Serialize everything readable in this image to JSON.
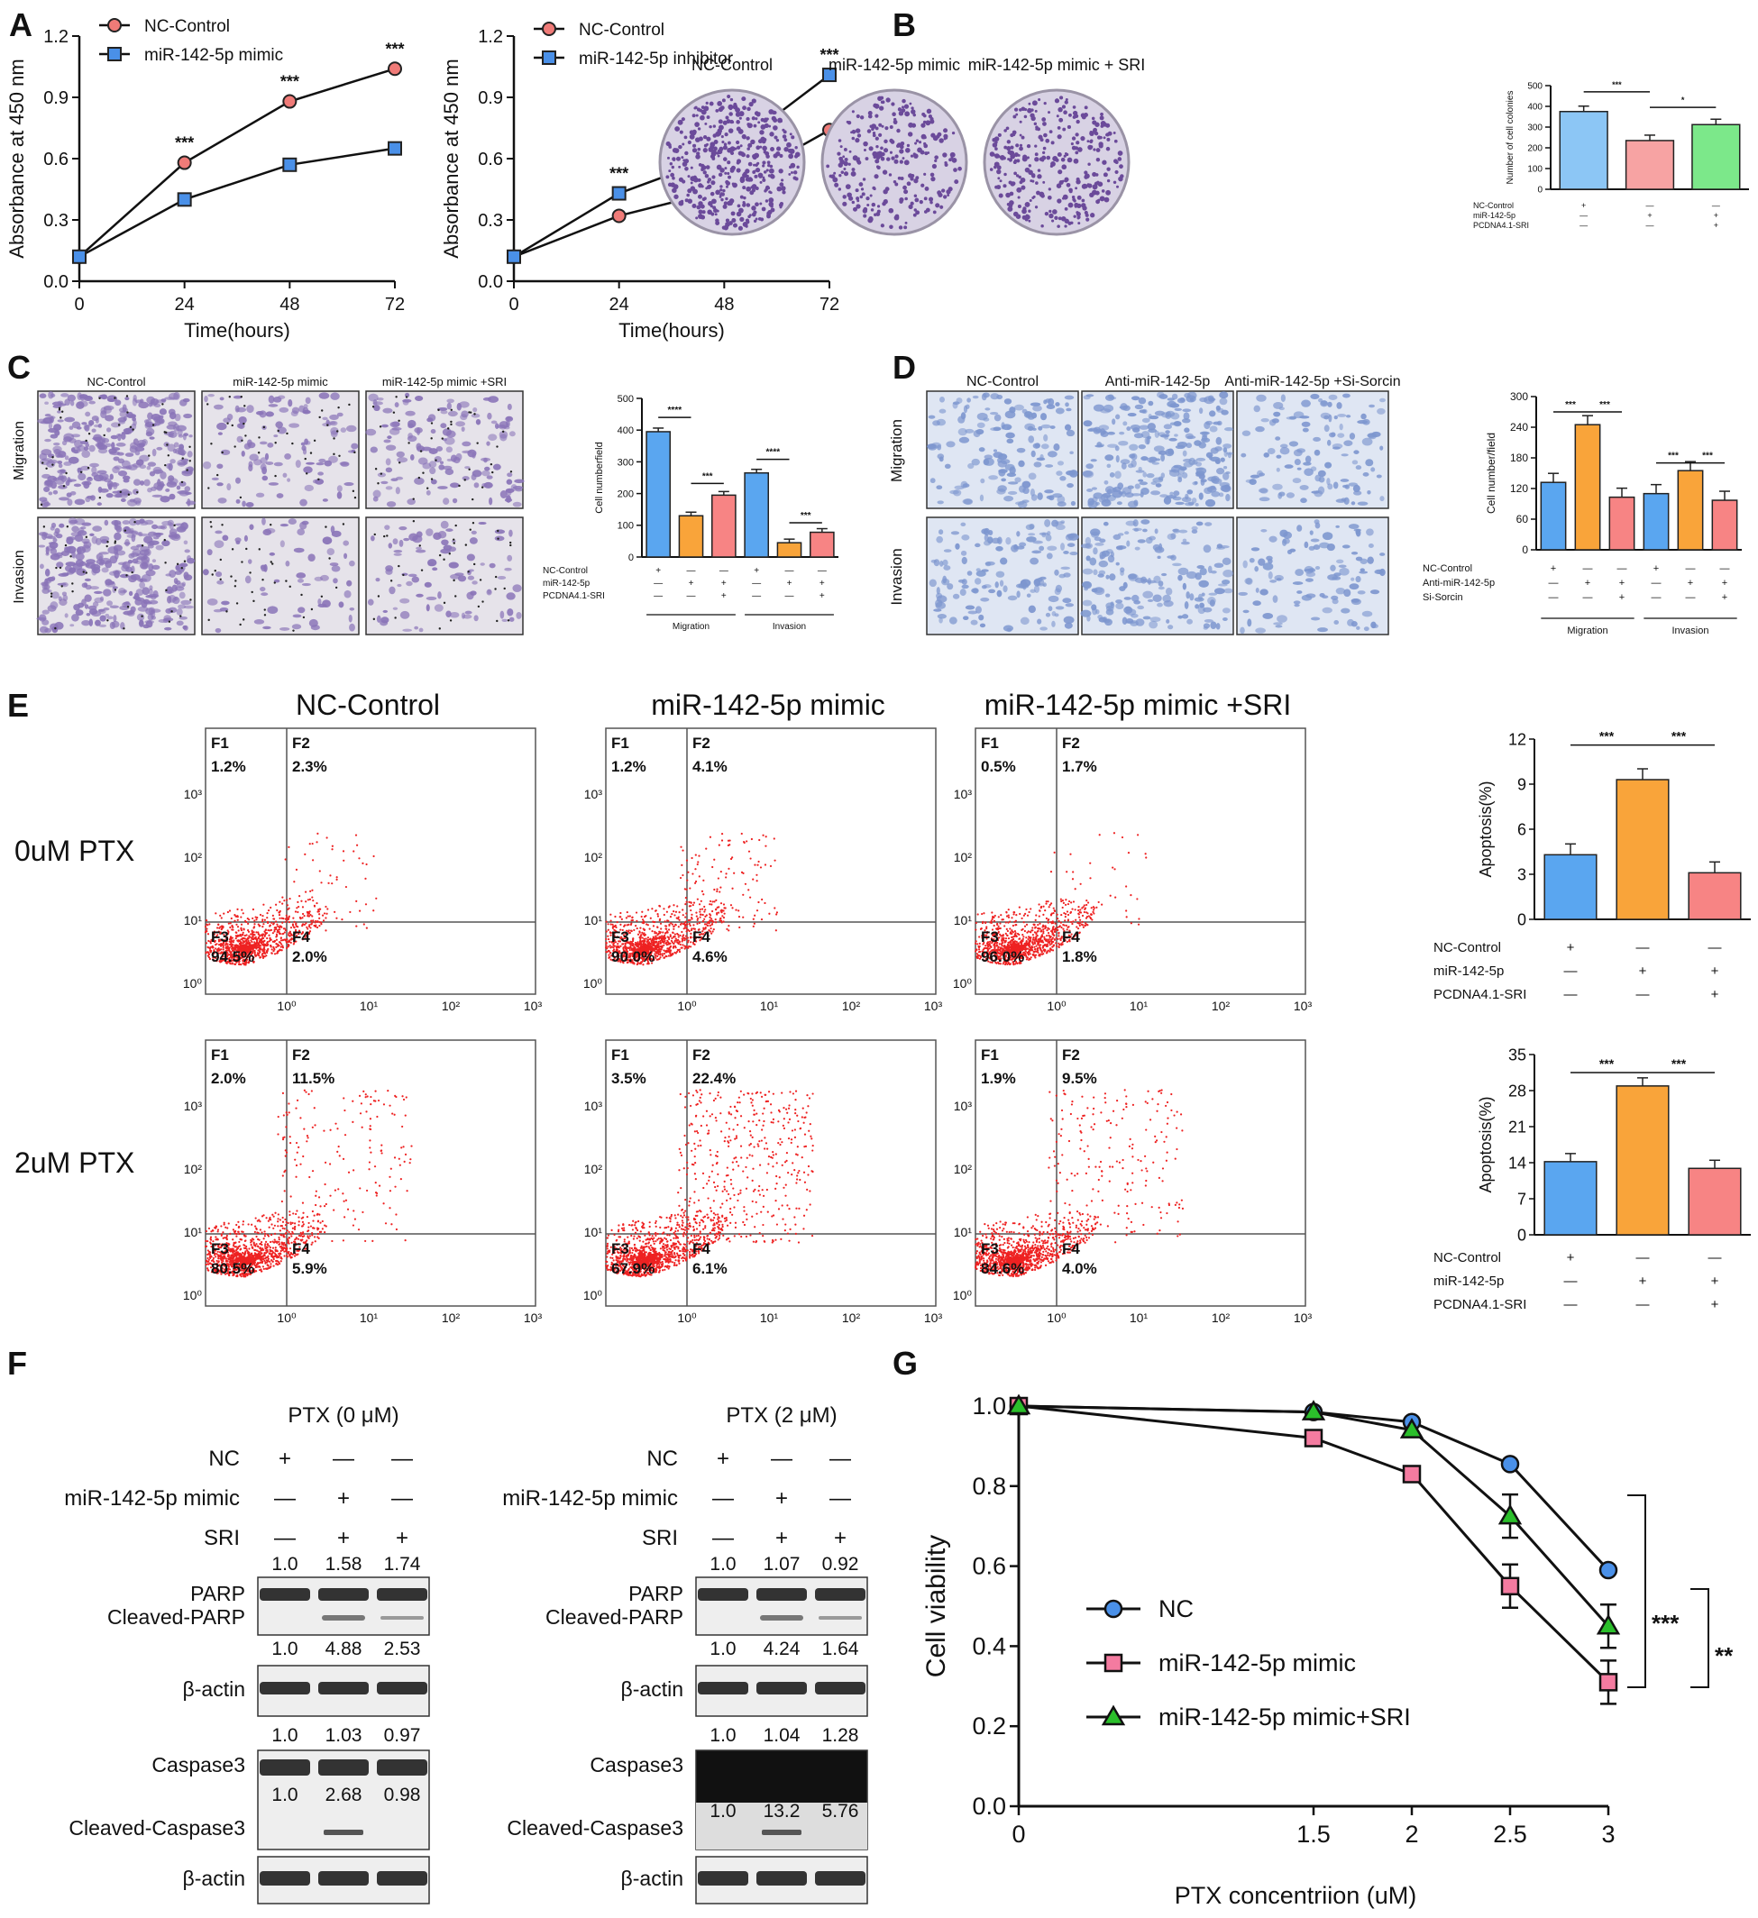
{
  "panel_labels": {
    "a": "A",
    "b": "B",
    "c": "C",
    "d": "D",
    "e": "E",
    "f": "F",
    "g": "G"
  },
  "colors": {
    "red_marker": "#f07b78",
    "blue_marker": "#4a90e8",
    "green_marker": "#2bbf2b",
    "bar_blue": "#5aa6f0",
    "bar_orange": "#f9a43a",
    "bar_pink": "#f78484",
    "bar_green": "#7ce88a",
    "bar_lightblue": "#8cc6f5",
    "bar_lightpink": "#f7a3a3",
    "dots": "#ee2222",
    "dish": "#d8d2e4",
    "dish_dots": "#6b4a9a",
    "well_purple": "#8a74b8",
    "well_blue": "#7d96cf",
    "blot": "#333333"
  },
  "chart_data": [
    {
      "id": "A1",
      "type": "line",
      "xlabel": "Time(hours)",
      "ylabel": "Absorbance at 450 nm",
      "x": [
        0,
        24,
        48,
        72
      ],
      "ylim": [
        0,
        1.2
      ],
      "yticks": [
        "0.0",
        "0.3",
        "0.6",
        "0.9",
        "1.2"
      ],
      "xticks": [
        "0",
        "24",
        "48",
        "72"
      ],
      "series": [
        {
          "name": "NC-Control",
          "marker": "circle",
          "values": [
            0.12,
            0.58,
            0.88,
            1.04
          ]
        },
        {
          "name": "miR-142-5p mimic",
          "marker": "square",
          "values": [
            0.12,
            0.4,
            0.57,
            0.65
          ]
        }
      ],
      "annotations": [
        "***",
        "***",
        "***"
      ]
    },
    {
      "id": "A2",
      "type": "line",
      "xlabel": "Time(hours)",
      "ylabel": "Absorbance at 450 nm",
      "x": [
        0,
        24,
        48,
        72
      ],
      "ylim": [
        0,
        1.2
      ],
      "yticks": [
        "0.0",
        "0.3",
        "0.6",
        "0.9",
        "1.2"
      ],
      "xticks": [
        "0",
        "24",
        "48",
        "72"
      ],
      "series": [
        {
          "name": "NC-Control",
          "marker": "circle",
          "values": [
            0.12,
            0.32,
            0.45,
            0.74
          ]
        },
        {
          "name": "miR-142-5p inhibitor",
          "marker": "square",
          "values": [
            0.12,
            0.43,
            0.62,
            1.01
          ]
        }
      ],
      "annotations": [
        "***",
        "**",
        "***"
      ]
    },
    {
      "id": "B",
      "type": "bar",
      "ylabel": "Number of cell colonies",
      "ylim": [
        0,
        500
      ],
      "yticks": [
        "0",
        "100",
        "200",
        "300",
        "400",
        "500"
      ],
      "values": [
        375,
        235,
        312
      ],
      "row_labels": [
        "NC-Control",
        "miR-142-5p",
        "PCDNA4.1-SRI"
      ],
      "signs": [
        [
          "+",
          "—",
          "—"
        ],
        [
          "—",
          "+",
          "+"
        ],
        [
          "—",
          "—",
          "+"
        ]
      ],
      "annotations": [
        "***",
        "*"
      ]
    },
    {
      "id": "C",
      "type": "bar",
      "ylabel": "Cell numberfield",
      "ylim": [
        0,
        500
      ],
      "yticks": [
        "0",
        "100",
        "200",
        "300",
        "400",
        "500"
      ],
      "values": [
        395,
        130,
        195,
        265,
        45,
        78
      ],
      "groups": [
        "Migration",
        "Invasion"
      ],
      "row_labels": [
        "NC-Control",
        "miR-142-5p",
        "PCDNA4.1-SRI"
      ],
      "signs": [
        [
          "+",
          "—",
          "—",
          "+",
          "—",
          "—"
        ],
        [
          "—",
          "+",
          "+",
          "—",
          "+",
          "+"
        ],
        [
          "—",
          "—",
          "+",
          "—",
          "—",
          "+"
        ]
      ],
      "annotations": [
        "****",
        "***",
        "****",
        "***"
      ]
    },
    {
      "id": "D",
      "type": "bar",
      "ylabel": "Cell number/field",
      "ylim": [
        0,
        300
      ],
      "yticks": [
        "0",
        "60",
        "120",
        "180",
        "240",
        "300"
      ],
      "values": [
        132,
        245,
        103,
        110,
        155,
        97
      ],
      "groups": [
        "Migration",
        "Invasion"
      ],
      "row_labels": [
        "NC-Control",
        "Anti-miR-142-5p",
        "Si-Sorcin"
      ],
      "signs": [
        [
          "+",
          "—",
          "—",
          "+",
          "—",
          "—"
        ],
        [
          "—",
          "+",
          "+",
          "—",
          "+",
          "+"
        ],
        [
          "—",
          "—",
          "+",
          "—",
          "—",
          "+"
        ]
      ],
      "annotations": [
        "***",
        "***",
        "***",
        "***"
      ]
    },
    {
      "id": "E1",
      "type": "bar",
      "ylabel": "Apoptosis(%)",
      "ylim": [
        0,
        12
      ],
      "yticks": [
        "0",
        "3",
        "6",
        "9",
        "12"
      ],
      "values": [
        4.3,
        9.3,
        3.1
      ],
      "row_labels": [
        "NC-Control",
        "miR-142-5p",
        "PCDNA4.1-SRI"
      ],
      "signs": [
        [
          "+",
          "—",
          "—"
        ],
        [
          "—",
          "+",
          "+"
        ],
        [
          "—",
          "—",
          "+"
        ]
      ],
      "annotations": [
        "***",
        "***"
      ]
    },
    {
      "id": "E2",
      "type": "bar",
      "ylabel": "Apoptosis(%)",
      "ylim": [
        0,
        35
      ],
      "yticks": [
        "0",
        "7",
        "14",
        "21",
        "28",
        "35"
      ],
      "values": [
        14.2,
        28.9,
        12.9
      ],
      "row_labels": [
        "NC-Control",
        "miR-142-5p",
        "PCDNA4.1-SRI"
      ],
      "signs": [
        [
          "+",
          "—",
          "—"
        ],
        [
          "—",
          "+",
          "+"
        ],
        [
          "—",
          "—",
          "+"
        ]
      ],
      "annotations": [
        "***",
        "***"
      ]
    },
    {
      "id": "G",
      "type": "line",
      "xlabel": "PTX concentriion (uM)",
      "ylabel": "Cell viability",
      "x": [
        0,
        1.5,
        2,
        2.5,
        3
      ],
      "xticks": [
        "0",
        "1.5",
        "2",
        "2.5",
        "3"
      ],
      "ylim": [
        0,
        1.0
      ],
      "yticks": [
        "0.0",
        "0.2",
        "0.4",
        "0.6",
        "0.8",
        "1.0"
      ],
      "series": [
        {
          "name": "NC",
          "marker": "circle",
          "values": [
            1.0,
            0.985,
            0.96,
            0.855,
            0.59
          ]
        },
        {
          "name": "miR-142-5p mimic",
          "marker": "square",
          "values": [
            1.0,
            0.92,
            0.83,
            0.55,
            0.31
          ]
        },
        {
          "name": "miR-142-5p mimic+SRI",
          "marker": "triangle",
          "values": [
            1.0,
            0.985,
            0.94,
            0.725,
            0.45
          ]
        }
      ],
      "annotations": [
        "***",
        "**"
      ]
    }
  ],
  "panel_b": {
    "titles": [
      "NC-Control",
      "miR-142-5p mimic",
      "miR-142-5p mimic + SRI"
    ]
  },
  "panel_c": {
    "titles": [
      "NC-Control",
      "miR-142-5p mimic",
      "miR-142-5p mimic +SRI"
    ],
    "rows": [
      "Migration",
      "Invasion"
    ]
  },
  "panel_d": {
    "titles": [
      "NC-Control",
      "Anti-miR-142-5p",
      "Anti-miR-142-5p +Si-Sorcin"
    ],
    "rows": [
      "Migration",
      "Invasion"
    ]
  },
  "panel_e": {
    "titles": [
      "NC-Control",
      "miR-142-5p mimic",
      "miR-142-5p mimic +SRI"
    ],
    "rows": [
      "0uM PTX",
      "2uM PTX"
    ],
    "quadrant_names": [
      "F1",
      "F2",
      "F3",
      "F4"
    ],
    "axis_ticks": [
      "10⁰",
      "10¹",
      "10²",
      "10³"
    ],
    "quadrants": [
      [
        [
          "1.2%",
          "2.3%",
          "94.5%",
          "2.0%"
        ],
        [
          "1.2%",
          "4.1%",
          "90.0%",
          "4.6%"
        ],
        [
          "0.5%",
          "1.7%",
          "96.0%",
          "1.8%"
        ]
      ],
      [
        [
          "2.0%",
          "11.5%",
          "80.5%",
          "5.9%"
        ],
        [
          "3.5%",
          "22.4%",
          "67.9%",
          "6.1%"
        ],
        [
          "1.9%",
          "9.5%",
          "84.6%",
          "4.0%"
        ]
      ]
    ]
  },
  "panel_f": {
    "left": {
      "title": "PTX (0 μM)",
      "cond_labels": [
        "NC",
        "miR-142-5p mimic",
        "SRI"
      ],
      "signs": [
        [
          "+",
          "—",
          "—"
        ],
        [
          "—",
          "+",
          "—"
        ],
        [
          "—",
          "+",
          "+"
        ]
      ],
      "parp_vals": [
        "1.0",
        "1.58",
        "1.74"
      ],
      "cparp_vals": [
        "1.0",
        "4.88",
        "2.53"
      ],
      "casp_vals": [
        "1.0",
        "1.03",
        "0.97"
      ],
      "ccasp_vals": [
        "1.0",
        "2.68",
        "0.98"
      ]
    },
    "right": {
      "title": "PTX (2 μM)",
      "cond_labels": [
        "NC",
        "miR-142-5p mimic",
        "SRI"
      ],
      "signs": [
        [
          "+",
          "—",
          "—"
        ],
        [
          "—",
          "+",
          "—"
        ],
        [
          "—",
          "+",
          "+"
        ]
      ],
      "parp_vals": [
        "1.0",
        "1.07",
        "0.92"
      ],
      "cparp_vals": [
        "1.0",
        "4.24",
        "1.64"
      ],
      "casp_vals": [
        "1.0",
        "1.04",
        "1.28"
      ],
      "ccasp_vals": [
        "1.0",
        "13.2",
        "5.76"
      ]
    },
    "band_labels": {
      "parp": "PARP",
      "cparp": "Cleaved-PARP",
      "actin": "β-actin",
      "casp": "Caspase3",
      "ccasp": "Cleaved-Caspase3"
    }
  }
}
